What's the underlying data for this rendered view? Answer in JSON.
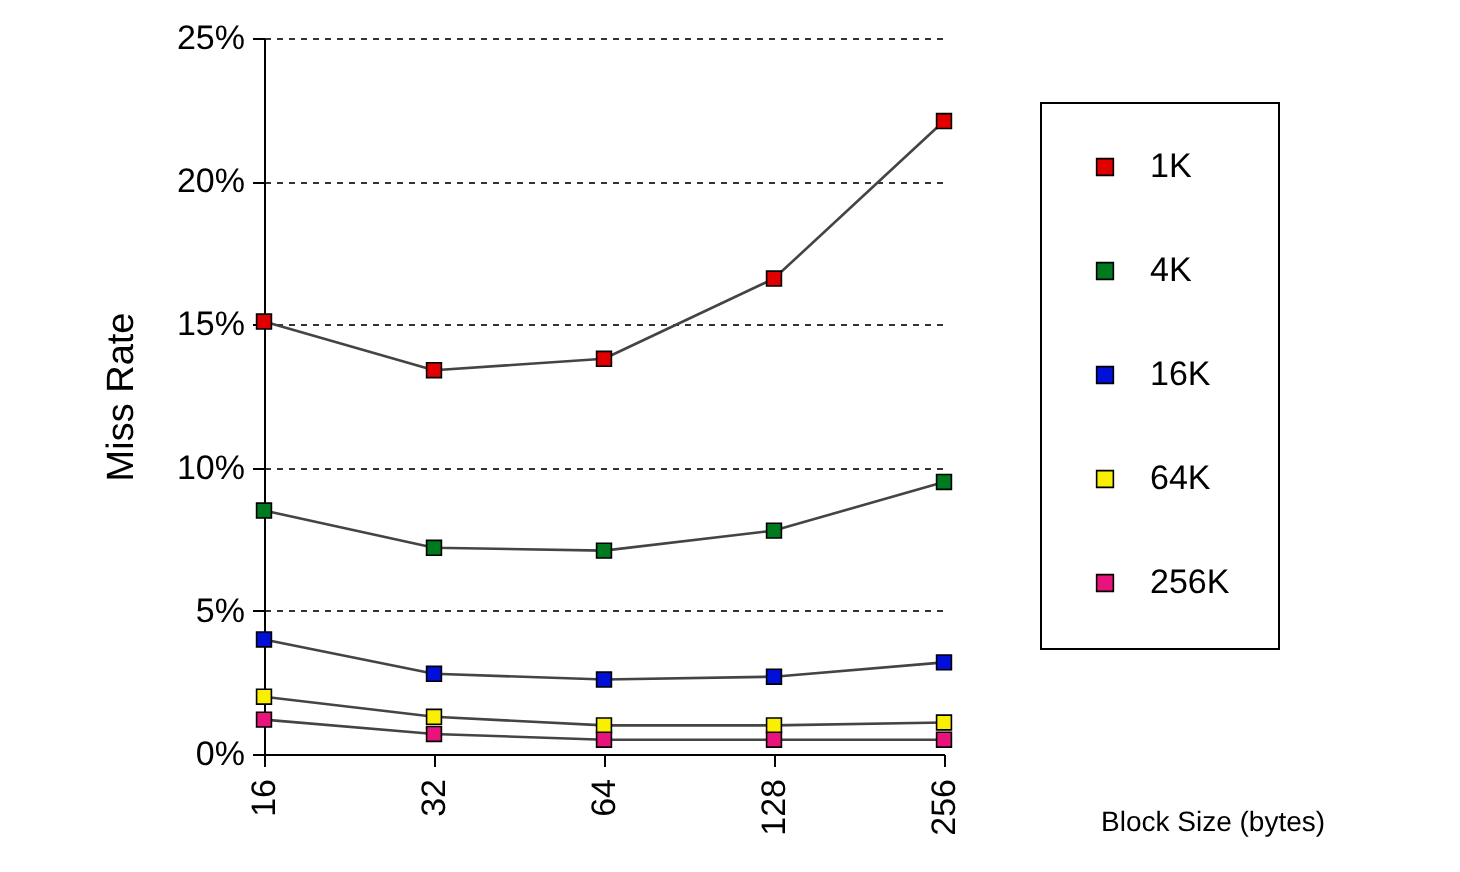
{
  "chart_data": {
    "type": "line",
    "xlabel": "Block Size (bytes)",
    "ylabel": "Miss Rate",
    "categories": [
      "16",
      "32",
      "64",
      "128",
      "256"
    ],
    "series": [
      {
        "name": "1K",
        "color": "#e00000",
        "values": [
          15.1,
          13.4,
          13.8,
          16.6,
          22.1
        ]
      },
      {
        "name": "4K",
        "color": "#007a1e",
        "values": [
          8.5,
          7.2,
          7.1,
          7.8,
          9.5
        ]
      },
      {
        "name": "16K",
        "color": "#0010d8",
        "values": [
          4.0,
          2.8,
          2.6,
          2.7,
          3.2
        ]
      },
      {
        "name": "64K",
        "color": "#f8f000",
        "values": [
          2.0,
          1.3,
          1.0,
          1.0,
          1.1
        ]
      },
      {
        "name": "256K",
        "color": "#e8147c",
        "values": [
          1.2,
          0.7,
          0.5,
          0.5,
          0.5
        ]
      }
    ],
    "ylim": [
      0,
      25
    ],
    "yticks": [
      {
        "value": 0,
        "label": "0%"
      },
      {
        "value": 5,
        "label": "5%"
      },
      {
        "value": 10,
        "label": "10%"
      },
      {
        "value": 15,
        "label": "15%"
      },
      {
        "value": 20,
        "label": "20%"
      },
      {
        "value": 25,
        "label": "25%"
      }
    ],
    "grid": "y",
    "legend": "right",
    "marker": "square",
    "line_style": "solid"
  }
}
